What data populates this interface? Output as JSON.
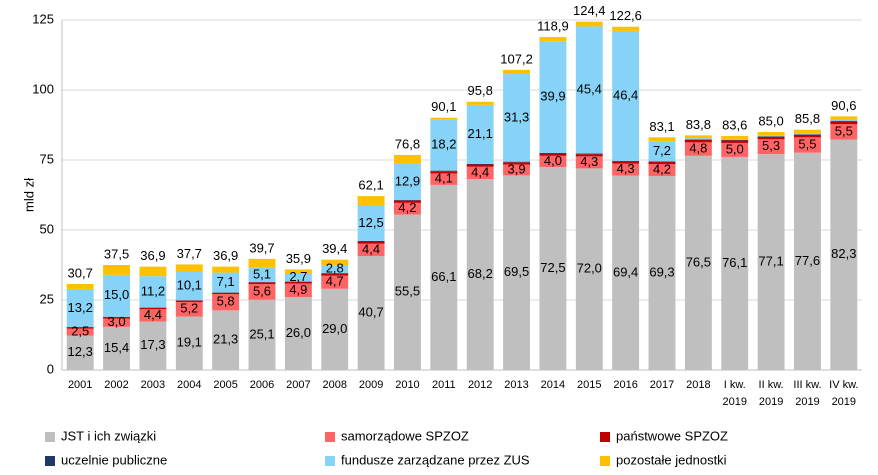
{
  "chart_data": {
    "type": "stacked_bar",
    "y_label": "mld zł",
    "categories": [
      "2001",
      "2002",
      "2003",
      "2004",
      "2005",
      "2006",
      "2007",
      "2008",
      "2009",
      "2010",
      "2011",
      "2012",
      "2013",
      "2014",
      "2015",
      "2016",
      "2017",
      "2018",
      "I kw. 2019",
      "II kw. 2019",
      "III kw. 2019",
      "IV kw. 2019"
    ],
    "ylim": [
      0,
      125
    ],
    "yticks": [
      0,
      25,
      50,
      75,
      100,
      125
    ],
    "grid": true,
    "legend": "bottom",
    "series": [
      {
        "name": "JST i ich związki",
        "color": "#bfbfbf",
        "values": [
          12.3,
          15.4,
          17.3,
          19.1,
          21.3,
          25.1,
          26.0,
          29.0,
          40.7,
          55.5,
          66.1,
          68.2,
          69.5,
          72.5,
          72.0,
          69.4,
          69.3,
          76.5,
          76.1,
          77.1,
          77.6,
          82.3
        ],
        "value_labels": [
          "12,3",
          "15,4",
          "17,3",
          "19,1",
          "21,3",
          "25,1",
          "26,0",
          "29,0",
          "40,7",
          "55,5",
          "66,1",
          "68,2",
          "69,5",
          "72,5",
          "72,0",
          "69,4",
          "69,3",
          "76,5",
          "76,1",
          "77,1",
          "77,6",
          "82,3"
        ]
      },
      {
        "name": "samorządowe SPZOZ",
        "color": "#ff6464",
        "values": [
          2.5,
          3.0,
          4.4,
          5.2,
          5.8,
          5.6,
          4.9,
          4.7,
          4.4,
          4.2,
          4.1,
          4.4,
          3.9,
          4.0,
          4.3,
          4.3,
          4.2,
          4.8,
          5.0,
          5.3,
          5.5,
          5.5
        ],
        "value_labels": [
          "2,5",
          "3,0",
          "4,4",
          "5,2",
          "5,8",
          "5,6",
          "4,9",
          "4,7",
          "4,4",
          "4,2",
          "4,1",
          "4,4",
          "3,9",
          "4,0",
          "4,3",
          "4,3",
          "4,2",
          "4,8",
          "5,0",
          "5,3",
          "5,5",
          "5,5"
        ]
      },
      {
        "name": "państwowe SPZOZ",
        "color": "#c00000",
        "values": [
          0.5,
          0.5,
          0.5,
          0.5,
          0.5,
          0.6,
          0.6,
          0.8,
          0.8,
          0.8,
          0.8,
          0.8,
          0.8,
          0.8,
          0.8,
          0.8,
          0.8,
          0.9,
          0.9,
          0.9,
          0.9,
          1.0
        ]
      },
      {
        "name": "uczelnie publiczne",
        "color": "#1f3864",
        "values": [
          0.1,
          0.1,
          0.1,
          0.1,
          0.1,
          0.1,
          0.1,
          0.1,
          0.2,
          0.2,
          0.2,
          0.2,
          0.2,
          0.2,
          0.2,
          0.2,
          0.2,
          0.2,
          0.2,
          0.2,
          0.2,
          0.2
        ]
      },
      {
        "name": "fundusze zarządzane przez ZUS",
        "color": "#87d3f8",
        "values": [
          13.2,
          15.0,
          11.2,
          10.1,
          7.1,
          5.1,
          2.7,
          2.8,
          12.5,
          12.9,
          18.2,
          21.1,
          31.3,
          39.9,
          45.4,
          46.4,
          7.2,
          0.4,
          0.3,
          0.3,
          0.3,
          0.3
        ],
        "value_labels": [
          "13,2",
          "15,0",
          "11,2",
          "10,1",
          "7,1",
          "5,1",
          "2,7",
          "2,8",
          "12,5",
          "12,9",
          "18,2",
          "21,1",
          "31,3",
          "39,9",
          "45,4",
          "46,4",
          "7,2",
          null,
          null,
          null,
          null,
          null
        ]
      },
      {
        "name": "pozostałe jednostki",
        "color": "#ffc000",
        "values": [
          2.1,
          3.5,
          3.4,
          2.7,
          2.1,
          3.2,
          1.6,
          2.0,
          3.5,
          3.2,
          0.7,
          1.1,
          1.5,
          1.5,
          1.7,
          1.5,
          1.4,
          1.0,
          1.1,
          1.2,
          1.3,
          1.3
        ]
      }
    ],
    "totals": [
      30.7,
      37.5,
      36.9,
      37.7,
      36.9,
      39.7,
      35.9,
      39.4,
      62.1,
      76.8,
      90.1,
      95.8,
      107.2,
      118.9,
      124.4,
      122.6,
      83.1,
      83.8,
      83.6,
      85.0,
      85.8,
      90.6
    ],
    "total_labels": [
      "30,7",
      "37,5",
      "36,9",
      "37,7",
      "36,9",
      "39,7",
      "35,9",
      "39,4",
      "62,1",
      "76,8",
      "90,1",
      "95,8",
      "107,2",
      "118,9",
      "124,4",
      "122,6",
      "83,1",
      "83,8",
      "83,6",
      "85,0",
      "85,8",
      "90,6"
    ]
  }
}
